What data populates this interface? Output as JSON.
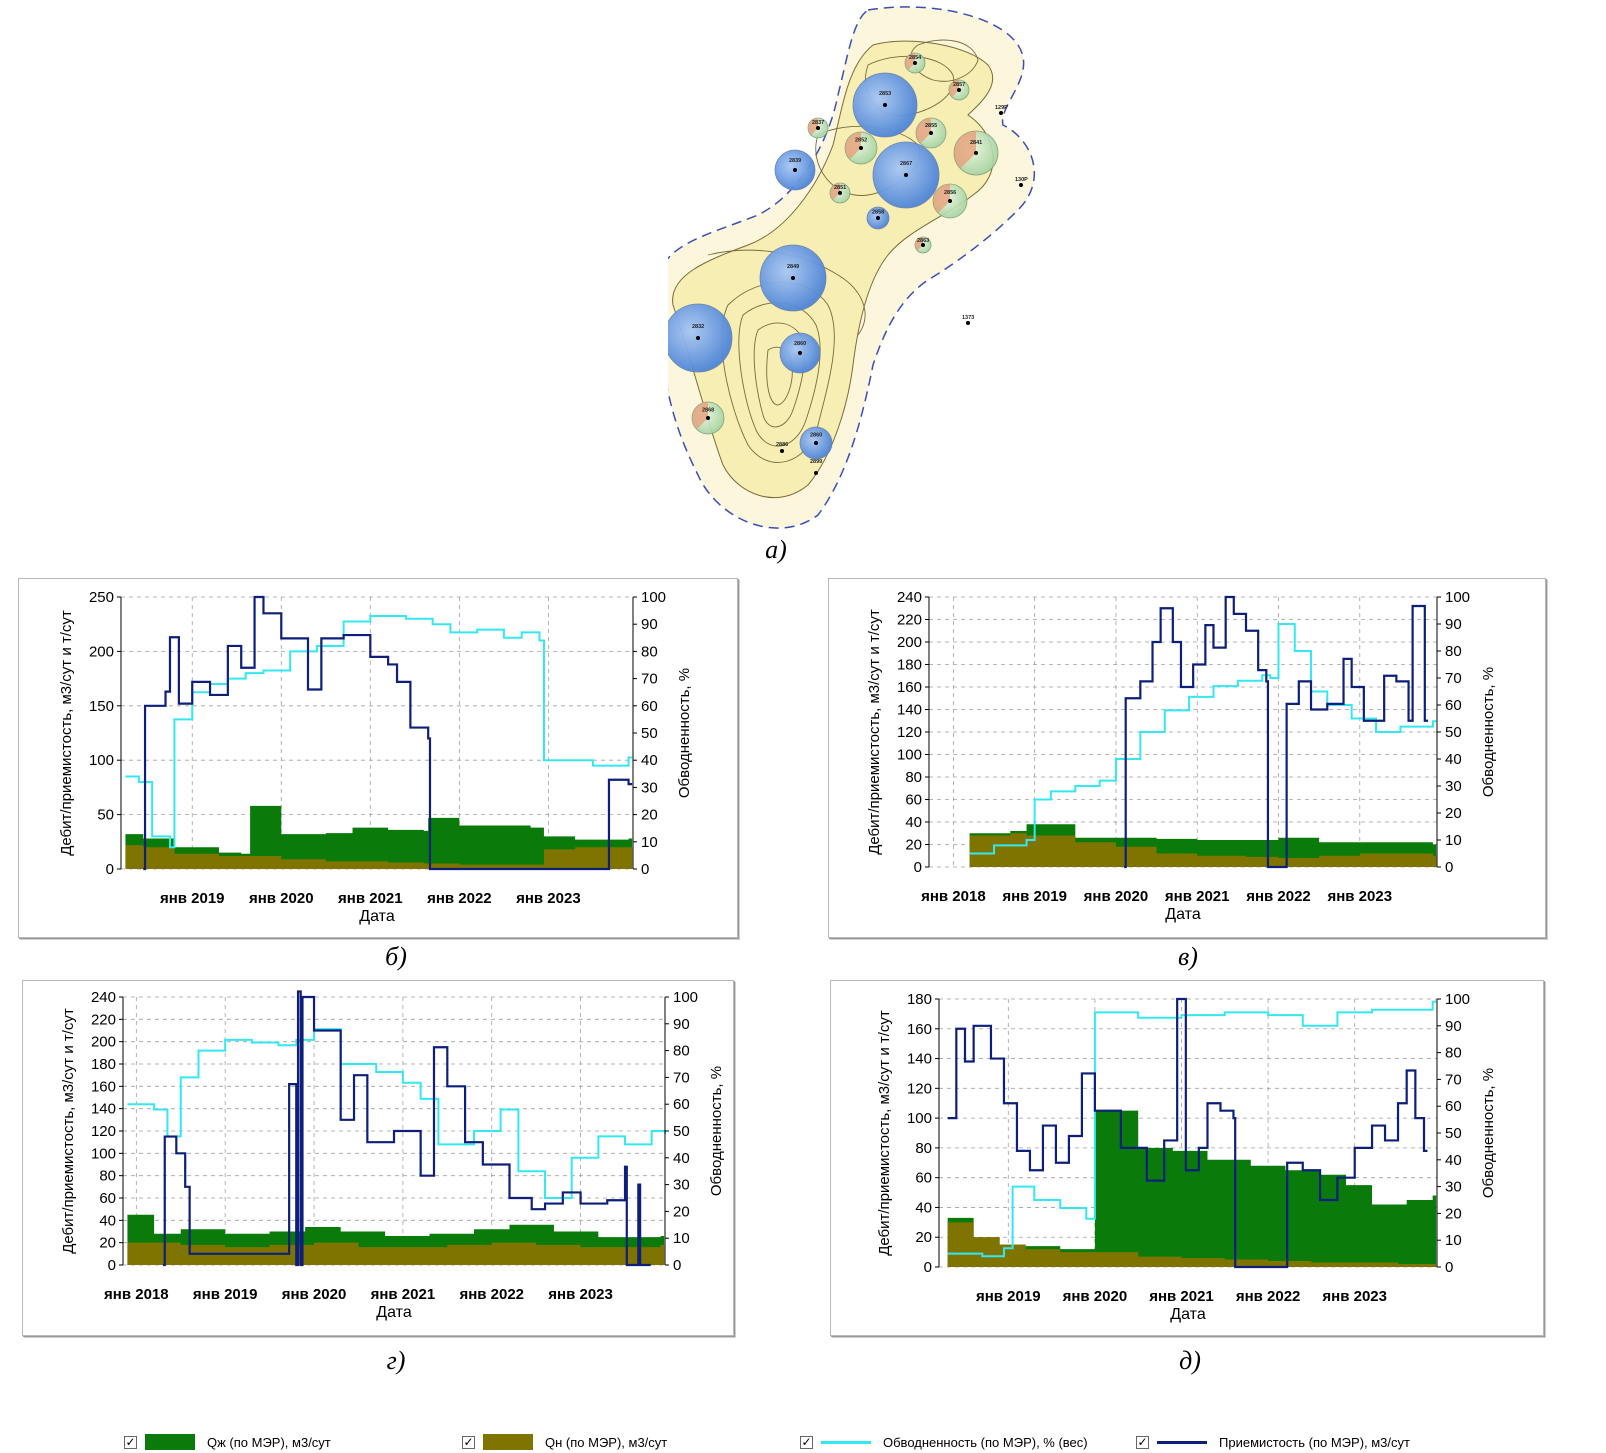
{
  "captions": {
    "a": "а)",
    "b": "б)",
    "v": "в)",
    "g": "г)",
    "d": "д)"
  },
  "colors": {
    "liquid": "#0a7a0a",
    "oil": "#7f7400",
    "watercut": "#33e8f0",
    "injectivity": "#0d1f7a",
    "grid": "#a0a0a0",
    "bubble_prod_oil": "#e8a07a",
    "bubble_prod_liq": "#b9e0b9",
    "bubble_inj": "#5f93e0",
    "map_fill": "#f7eeb3",
    "contour_line": "#7a6a3a",
    "boundary": "#3a4fb5"
  },
  "map": {
    "wells": [
      {
        "label": "2854",
        "kind": "prod"
      },
      {
        "label": "2857",
        "kind": "prod"
      },
      {
        "label": "2853",
        "kind": "inj"
      },
      {
        "label": "2837",
        "kind": "prod"
      },
      {
        "label": "2852",
        "kind": "prod"
      },
      {
        "label": "2855",
        "kind": "prod"
      },
      {
        "label": "2841",
        "kind": "prod"
      },
      {
        "label": "2839",
        "kind": "inj"
      },
      {
        "label": "2867",
        "kind": "inj"
      },
      {
        "label": "2851",
        "kind": "prod"
      },
      {
        "label": "2856",
        "kind": "prod"
      },
      {
        "label": "2858",
        "kind": "inj"
      },
      {
        "label": "2863",
        "kind": "prod"
      },
      {
        "label": "2849",
        "kind": "inj"
      },
      {
        "label": "2832",
        "kind": "inj"
      },
      {
        "label": "2860",
        "kind": "inj"
      },
      {
        "label": "2860",
        "kind": "inj"
      },
      {
        "label": "2868",
        "kind": "prod"
      },
      {
        "label": "2886",
        "kind": "none"
      },
      {
        "label": "2899",
        "kind": "none"
      },
      {
        "label": "129Р",
        "kind": "none"
      },
      {
        "label": "130Р",
        "kind": "none"
      },
      {
        "label": "1373",
        "kind": "none"
      }
    ]
  },
  "legend": {
    "liquid": "Qж (по МЭР), м3/сут",
    "oil": "Qн (по МЭР), м3/сут",
    "watercut": "Обводненность (по МЭР), % (вес)",
    "injectivity": "Приемистость (по МЭР), м3/сут",
    "check": "✓"
  },
  "chart_data": [
    {
      "id": "b",
      "type": "area",
      "xlabel": "Дата",
      "ylabel": "Дебит/приемистость, м3/сут и т/сут",
      "y2label": "Обводненность, %",
      "ylim": [
        0,
        250
      ],
      "yticks": [
        0,
        50,
        100,
        150,
        200,
        250
      ],
      "y2lim": [
        0,
        100
      ],
      "y2ticks": [
        0,
        10,
        20,
        30,
        40,
        50,
        60,
        70,
        80,
        90,
        100
      ],
      "xlim": [
        2018.2,
        2023.95
      ],
      "xticks": [
        2019,
        2020,
        2021,
        2022,
        2023
      ],
      "xticklabels": [
        "янв 2019",
        "янв 2020",
        "янв 2021",
        "янв 2022",
        "янв 2023"
      ],
      "series": [
        {
          "name": "Qж (по МЭР), м3/сут",
          "kind": "liquid",
          "x": [
            2018.25,
            2018.45,
            2018.8,
            2019.3,
            2019.55,
            2019.65,
            2020,
            2020.5,
            2020.8,
            2021.2,
            2021.6,
            2021.65,
            2022,
            2022.8,
            2022.95,
            2023.3,
            2023.9
          ],
          "y": [
            32,
            28,
            20,
            15,
            14,
            58,
            32,
            33,
            38,
            36,
            35,
            47,
            40,
            38,
            30,
            27,
            28
          ]
        },
        {
          "name": "Qн (по МЭР), м3/сут",
          "kind": "oil",
          "x": [
            2018.25,
            2018.45,
            2018.8,
            2019.3,
            2019.65,
            2020,
            2020.5,
            2021.2,
            2021.6,
            2022,
            2022.8,
            2022.95,
            2023.3,
            2023.9
          ],
          "y": [
            22,
            20,
            14,
            12,
            12,
            9,
            7,
            6,
            5,
            4,
            4,
            18,
            20,
            20
          ]
        },
        {
          "name": "Обводненность (по МЭР), % (вес)",
          "kind": "watercut",
          "axis": "y2",
          "x": [
            2018.25,
            2018.4,
            2018.55,
            2018.75,
            2018.8,
            2019,
            2019.2,
            2019.4,
            2019.6,
            2019.8,
            2020.1,
            2020.4,
            2020.7,
            2021,
            2021.4,
            2021.7,
            2021.9,
            2022.2,
            2022.5,
            2022.7,
            2022.9,
            2022.95,
            2023.5,
            2023.9
          ],
          "y": [
            34,
            32,
            12,
            8,
            55,
            65,
            68,
            70,
            72,
            73,
            80,
            82,
            91,
            93,
            92,
            90,
            87,
            88,
            85,
            87,
            84,
            40,
            38,
            41
          ]
        },
        {
          "name": "Приемистость (по МЭР), м3/сут",
          "kind": "injectivity",
          "x": [
            2018.45,
            2018.47,
            2018.7,
            2018.75,
            2018.85,
            2019,
            2019.2,
            2019.4,
            2019.55,
            2019.7,
            2019.8,
            2020,
            2020.3,
            2020.45,
            2020.7,
            2021,
            2021.2,
            2021.3,
            2021.45,
            2021.65,
            2021.67,
            2023.65,
            2023.68,
            2023.9
          ],
          "y": [
            0,
            150,
            163,
            213,
            152,
            172,
            160,
            205,
            185,
            250,
            235,
            212,
            165,
            212,
            215,
            195,
            188,
            172,
            130,
            120,
            0,
            0,
            82,
            78
          ]
        }
      ]
    },
    {
      "id": "v",
      "type": "area",
      "xlabel": "Дата",
      "ylabel": "Дебит/приемистость, м3/сут и т/сут",
      "y2label": "Обводненность, %",
      "ylim": [
        0,
        240
      ],
      "yticks": [
        0,
        20,
        40,
        60,
        80,
        100,
        120,
        140,
        160,
        180,
        200,
        220,
        240
      ],
      "y2lim": [
        0,
        100
      ],
      "y2ticks": [
        0,
        10,
        20,
        30,
        40,
        50,
        60,
        70,
        80,
        90,
        100
      ],
      "xlim": [
        2017.7,
        2023.95
      ],
      "xticks": [
        2018,
        2019,
        2020,
        2021,
        2022,
        2023
      ],
      "xticklabels": [
        "янв 2018",
        "янв 2019",
        "янв 2020",
        "янв 2021",
        "янв 2022",
        "янв 2023"
      ],
      "series": [
        {
          "name": "Qж (по МЭР), м3/сут",
          "kind": "liquid",
          "x": [
            2018.2,
            2018.7,
            2018.9,
            2019.5,
            2020,
            2020.5,
            2021,
            2021.6,
            2022,
            2022.5,
            2023,
            2023.9
          ],
          "y": [
            30,
            32,
            38,
            26,
            26,
            25,
            24,
            24,
            26,
            22,
            22,
            20
          ]
        },
        {
          "name": "Qн (по МЭР), м3/сут",
          "kind": "oil",
          "x": [
            2018.2,
            2018.7,
            2018.9,
            2019.5,
            2020,
            2020.5,
            2021,
            2021.6,
            2022,
            2022.5,
            2023,
            2023.9
          ],
          "y": [
            28,
            30,
            28,
            22,
            18,
            12,
            10,
            9,
            8,
            10,
            12,
            10
          ]
        },
        {
          "name": "Обводненность (по МЭР), % (вес)",
          "kind": "watercut",
          "axis": "y2",
          "x": [
            2018.2,
            2018.5,
            2018.9,
            2019,
            2019.2,
            2019.5,
            2019.8,
            2020,
            2020.3,
            2020.6,
            2020.9,
            2021.2,
            2021.5,
            2021.8,
            2021.9,
            2022,
            2022.2,
            2022.4,
            2022.6,
            2022.9,
            2023.2,
            2023.5,
            2023.9
          ],
          "y": [
            5,
            8,
            10,
            25,
            28,
            30,
            32,
            40,
            50,
            58,
            63,
            67,
            69,
            71,
            70,
            90,
            80,
            65,
            60,
            55,
            50,
            52,
            54
          ]
        },
        {
          "name": "Приемистость (по МЭР), м3/сут",
          "kind": "injectivity",
          "x": [
            2020.1,
            2020.12,
            2020.3,
            2020.45,
            2020.55,
            2020.7,
            2020.8,
            2020.95,
            2021.1,
            2021.2,
            2021.35,
            2021.45,
            2021.6,
            2021.75,
            2021.85,
            2021.87,
            2022.1,
            2022.25,
            2022.4,
            2022.6,
            2022.8,
            2022.9,
            2023.05,
            2023.2,
            2023.3,
            2023.45,
            2023.6,
            2023.65,
            2023.8
          ],
          "y": [
            0,
            150,
            165,
            200,
            230,
            200,
            160,
            180,
            215,
            195,
            240,
            225,
            210,
            175,
            165,
            0,
            145,
            165,
            140,
            145,
            185,
            160,
            130,
            130,
            170,
            165,
            130,
            232,
            130
          ]
        }
      ]
    },
    {
      "id": "g",
      "type": "area",
      "xlabel": "Дата",
      "ylabel": "Дебит/приемистость, м3/сут и т/сут",
      "y2label": "Обводненность, %",
      "ylim": [
        0,
        240
      ],
      "yticks": [
        0,
        20,
        40,
        60,
        80,
        100,
        120,
        140,
        160,
        180,
        200,
        220,
        240
      ],
      "y2lim": [
        0,
        100
      ],
      "y2ticks": [
        0,
        10,
        20,
        30,
        40,
        50,
        60,
        70,
        80,
        90,
        100
      ],
      "xlim": [
        2017.85,
        2023.95
      ],
      "xticks": [
        2018,
        2019,
        2020,
        2021,
        2022,
        2023
      ],
      "xticklabels": [
        "янв 2018",
        "янв 2019",
        "янв 2020",
        "янв 2021",
        "янв 2022",
        "янв 2023"
      ],
      "series": [
        {
          "name": "Qж (по МЭР), м3/сут",
          "kind": "liquid",
          "x": [
            2017.9,
            2018.2,
            2018.5,
            2019,
            2019.5,
            2019.9,
            2020.3,
            2020.8,
            2021.3,
            2021.8,
            2022.2,
            2022.7,
            2023.2,
            2023.9
          ],
          "y": [
            45,
            28,
            32,
            28,
            30,
            34,
            30,
            26,
            28,
            32,
            36,
            30,
            25,
            26
          ]
        },
        {
          "name": "Qн (по МЭР), м3/сут",
          "kind": "oil",
          "x": [
            2017.9,
            2018.5,
            2019,
            2019.5,
            2020,
            2020.5,
            2021,
            2021.5,
            2022,
            2022.5,
            2023,
            2023.9
          ],
          "y": [
            20,
            18,
            16,
            18,
            20,
            16,
            16,
            18,
            20,
            18,
            16,
            18
          ]
        },
        {
          "name": "Обводненность (по МЭР), % (вес)",
          "kind": "watercut",
          "axis": "y2",
          "x": [
            2017.9,
            2018.2,
            2018.35,
            2018.5,
            2018.7,
            2019,
            2019.3,
            2019.6,
            2019.8,
            2020,
            2020.3,
            2020.7,
            2021,
            2021.2,
            2021.4,
            2021.8,
            2022.1,
            2022.3,
            2022.6,
            2022.9,
            2023.2,
            2023.5,
            2023.8,
            2023.95
          ],
          "y": [
            60,
            58,
            48,
            70,
            80,
            84,
            83,
            82,
            84,
            88,
            75,
            72,
            68,
            62,
            45,
            50,
            58,
            35,
            25,
            40,
            48,
            45,
            50,
            49
          ]
        },
        {
          "name": "Приемистость (по МЭР), м3/сут",
          "kind": "injectivity",
          "x": [
            2018.3,
            2018.32,
            2018.45,
            2018.55,
            2018.6,
            2019.7,
            2019.72,
            2019.8,
            2019.82,
            2019.85,
            2019.87,
            2020,
            2020.3,
            2020.45,
            2020.6,
            2020.9,
            2021.2,
            2021.35,
            2021.5,
            2021.7,
            2021.9,
            2022.2,
            2022.45,
            2022.6,
            2022.8,
            2023,
            2023.3,
            2023.5,
            2023.52,
            2023.65,
            2023.67,
            2023.75
          ],
          "y": [
            0,
            115,
            100,
            70,
            10,
            10,
            162,
            0,
            245,
            0,
            240,
            210,
            130,
            170,
            110,
            120,
            80,
            195,
            160,
            110,
            90,
            60,
            50,
            55,
            65,
            55,
            58,
            88,
            0,
            72,
            0,
            0
          ]
        }
      ]
    },
    {
      "id": "d",
      "type": "area",
      "xlabel": "Дата",
      "ylabel": "Дебит/приемистость, м3/сут и т/сут",
      "y2label": "Обводненность, %",
      "ylim": [
        0,
        180
      ],
      "yticks": [
        0,
        20,
        40,
        60,
        80,
        100,
        120,
        140,
        160,
        180
      ],
      "y2lim": [
        0,
        100
      ],
      "y2ticks": [
        0,
        10,
        20,
        30,
        40,
        50,
        60,
        70,
        80,
        90,
        100
      ],
      "xlim": [
        2018.2,
        2023.95
      ],
      "xticks": [
        2019,
        2020,
        2021,
        2022,
        2023
      ],
      "xticklabels": [
        "янв 2019",
        "янв 2020",
        "янв 2021",
        "янв 2022",
        "янв 2023"
      ],
      "series": [
        {
          "name": "Qж (по МЭР), м3/сут",
          "kind": "liquid",
          "x": [
            2018.3,
            2018.6,
            2018.9,
            2019.2,
            2019.6,
            2019.95,
            2020,
            2020.5,
            2020.9,
            2021.3,
            2021.8,
            2022.2,
            2022.6,
            2022.9,
            2023.2,
            2023.6,
            2023.9
          ],
          "y": [
            33,
            20,
            15,
            14,
            12,
            12,
            105,
            80,
            78,
            72,
            68,
            65,
            62,
            55,
            42,
            45,
            48
          ]
        },
        {
          "name": "Qн (по МЭР), м3/сут",
          "kind": "oil",
          "x": [
            2018.3,
            2018.6,
            2018.9,
            2019.2,
            2019.6,
            2020,
            2020.5,
            2021,
            2021.5,
            2022,
            2022.5,
            2023,
            2023.5,
            2023.9
          ],
          "y": [
            30,
            20,
            15,
            12,
            10,
            10,
            7,
            6,
            5,
            4,
            3,
            3,
            2,
            2
          ]
        },
        {
          "name": "Обводненность (по МЭР), % (вес)",
          "kind": "watercut",
          "axis": "y2",
          "x": [
            2018.3,
            2018.7,
            2018.95,
            2019.05,
            2019.3,
            2019.6,
            2019.9,
            2020,
            2020.5,
            2021,
            2021.5,
            2022,
            2022.4,
            2022.8,
            2023.2,
            2023.6,
            2023.9
          ],
          "y": [
            5,
            4,
            7,
            30,
            25,
            22,
            18,
            95,
            93,
            94,
            95,
            94,
            90,
            95,
            96,
            96,
            99
          ]
        },
        {
          "name": "Приемистость (по МЭР), м3/сут",
          "kind": "injectivity",
          "x": [
            2018.3,
            2018.4,
            2018.5,
            2018.6,
            2018.8,
            2018.95,
            2019.1,
            2019.25,
            2019.4,
            2019.55,
            2019.7,
            2019.85,
            2020,
            2020.3,
            2020.6,
            2020.8,
            2020.95,
            2021.05,
            2021.2,
            2021.3,
            2021.45,
            2021.6,
            2021.62,
            2022.2,
            2022.22,
            2022.4,
            2022.6,
            2022.8,
            2023,
            2023.2,
            2023.35,
            2023.5,
            2023.6,
            2023.7,
            2023.8
          ],
          "y": [
            100,
            160,
            138,
            162,
            140,
            110,
            78,
            65,
            95,
            70,
            88,
            130,
            105,
            80,
            58,
            85,
            180,
            65,
            80,
            110,
            105,
            100,
            0,
            0,
            70,
            65,
            45,
            60,
            80,
            95,
            85,
            110,
            132,
            100,
            78
          ]
        }
      ]
    }
  ]
}
